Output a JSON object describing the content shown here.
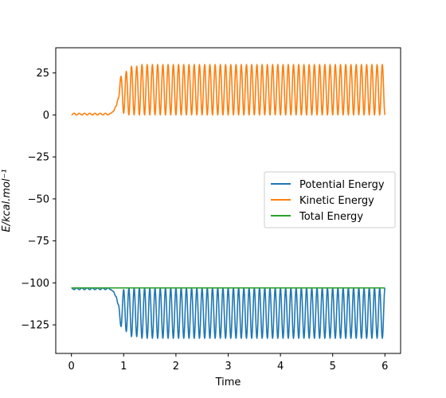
{
  "chart_data": {
    "type": "line",
    "xlabel": "Time",
    "ylabel": "E/kcal.mol⁻¹",
    "xlim": [
      -0.3,
      6.3
    ],
    "ylim": [
      -142,
      40
    ],
    "xticks": [
      0,
      1,
      2,
      3,
      4,
      5,
      6
    ],
    "yticks": [
      25,
      0,
      -25,
      -50,
      -75,
      -100,
      -125
    ],
    "ytick_labels": [
      "25",
      "0",
      "−25",
      "−50",
      "−75",
      "−100",
      "−125"
    ],
    "grid": false,
    "legend_placement": "center-right",
    "colors": {
      "potential": "#1f77b4",
      "kinetic": "#ff7f0e",
      "total": "#2ca02c"
    },
    "total_energy": -103.0,
    "series": [
      {
        "name": "Potential Energy",
        "baseline": -103.0,
        "x": [
          0.0,
          0.05,
          0.1,
          0.15,
          0.2,
          0.25,
          0.3,
          0.35,
          0.4,
          0.45,
          0.5,
          0.55,
          0.6,
          0.65,
          0.7,
          0.75,
          0.8,
          0.85,
          0.9,
          0.95,
          1.0,
          1.05,
          1.1,
          1.15,
          1.2,
          1.25,
          1.3,
          1.35,
          1.4,
          1.45,
          1.5,
          1.55,
          1.6,
          1.65,
          1.7,
          1.75,
          1.8,
          1.85,
          1.9,
          1.95,
          2.0,
          2.05,
          2.1,
          2.15,
          2.2,
          2.25,
          2.3,
          2.35,
          2.4,
          2.45,
          2.5,
          2.55,
          2.6,
          2.65,
          2.7,
          2.75,
          2.8,
          2.85,
          2.9,
          2.95,
          3.0,
          3.05,
          3.1,
          3.15,
          3.2,
          3.25,
          3.3,
          3.35,
          3.4,
          3.45,
          3.5,
          3.55,
          3.6,
          3.65,
          3.7,
          3.75,
          3.8,
          3.85,
          3.9,
          3.95,
          4.0,
          4.05,
          4.1,
          4.15,
          4.2,
          4.25,
          4.3,
          4.35,
          4.4,
          4.45,
          4.5,
          4.55,
          4.6,
          4.65,
          4.7,
          4.75,
          4.8,
          4.85,
          4.9,
          4.95,
          5.0,
          5.05,
          5.1,
          5.15,
          5.2,
          5.25,
          5.3,
          5.35,
          5.4,
          5.45,
          5.5,
          5.55,
          5.6,
          5.65,
          5.7,
          5.75,
          5.8,
          5.85,
          5.9,
          5.95,
          6.0
        ],
        "y": [
          -103,
          -104,
          -103,
          -104,
          -103,
          -104,
          -103,
          -104,
          -103,
          -104,
          -103,
          -104,
          -103,
          -104,
          -103,
          -104,
          -105,
          -108,
          -113,
          -126,
          -104,
          -129,
          -103,
          -132,
          -103,
          -132,
          -103,
          -133,
          -103,
          -133,
          -103,
          -133,
          -103,
          -133,
          -103,
          -133,
          -103,
          -133,
          -103,
          -133,
          -103,
          -133,
          -103,
          -133,
          -103,
          -133,
          -103,
          -133,
          -103,
          -133,
          -103,
          -133,
          -103,
          -133,
          -103,
          -133,
          -103,
          -133,
          -103,
          -133,
          -103,
          -133,
          -103,
          -133,
          -103,
          -133,
          -103,
          -133,
          -103,
          -133,
          -103,
          -133,
          -103,
          -133,
          -103,
          -133,
          -103,
          -133,
          -103,
          -133,
          -103,
          -133,
          -103,
          -133,
          -103,
          -133,
          -103,
          -133,
          -103,
          -133,
          -103,
          -133,
          -103,
          -133,
          -103,
          -133,
          -103,
          -133,
          -103,
          -133,
          -103,
          -133,
          -103,
          -133,
          -103,
          -133,
          -103,
          -133,
          -103,
          -133,
          -103,
          -133,
          -103,
          -133,
          -103,
          -133,
          -103,
          -133,
          -103,
          -133,
          -103
        ]
      },
      {
        "name": "Kinetic Energy",
        "baseline": 0.0,
        "x": [
          0.0,
          0.05,
          0.1,
          0.15,
          0.2,
          0.25,
          0.3,
          0.35,
          0.4,
          0.45,
          0.5,
          0.55,
          0.6,
          0.65,
          0.7,
          0.75,
          0.8,
          0.85,
          0.9,
          0.95,
          1.0,
          1.05,
          1.1,
          1.15,
          1.2,
          1.25,
          1.3,
          1.35,
          1.4,
          1.45,
          1.5,
          1.55,
          1.6,
          1.65,
          1.7,
          1.75,
          1.8,
          1.85,
          1.9,
          1.95,
          2.0,
          2.05,
          2.1,
          2.15,
          2.2,
          2.25,
          2.3,
          2.35,
          2.4,
          2.45,
          2.5,
          2.55,
          2.6,
          2.65,
          2.7,
          2.75,
          2.8,
          2.85,
          2.9,
          2.95,
          3.0,
          3.05,
          3.1,
          3.15,
          3.2,
          3.25,
          3.3,
          3.35,
          3.4,
          3.45,
          3.5,
          3.55,
          3.6,
          3.65,
          3.7,
          3.75,
          3.8,
          3.85,
          3.9,
          3.95,
          4.0,
          4.05,
          4.1,
          4.15,
          4.2,
          4.25,
          4.3,
          4.35,
          4.4,
          4.45,
          4.5,
          4.55,
          4.6,
          4.65,
          4.7,
          4.75,
          4.8,
          4.85,
          4.9,
          4.95,
          5.0,
          5.05,
          5.1,
          5.15,
          5.2,
          5.25,
          5.3,
          5.35,
          5.4,
          5.45,
          5.5,
          5.55,
          5.6,
          5.65,
          5.7,
          5.75,
          5.8,
          5.85,
          5.9,
          5.95,
          6.0
        ],
        "y": [
          0,
          1,
          0,
          1,
          0,
          1,
          0,
          1,
          0,
          1,
          0,
          1,
          0,
          1,
          0,
          1,
          2,
          5,
          10,
          23,
          1,
          26,
          0,
          29,
          0,
          29,
          0,
          30,
          0,
          30,
          0,
          30,
          0,
          30,
          0,
          30,
          0,
          30,
          0,
          30,
          0,
          30,
          0,
          30,
          0,
          30,
          0,
          30,
          0,
          30,
          0,
          30,
          0,
          30,
          0,
          30,
          0,
          30,
          0,
          30,
          0,
          30,
          0,
          30,
          0,
          30,
          0,
          30,
          0,
          30,
          0,
          30,
          0,
          30,
          0,
          30,
          0,
          30,
          0,
          30,
          0,
          30,
          0,
          30,
          0,
          30,
          0,
          30,
          0,
          30,
          0,
          30,
          0,
          30,
          0,
          30,
          0,
          30,
          0,
          30,
          0,
          30,
          0,
          30,
          0,
          30,
          0,
          30,
          0,
          30,
          0,
          30,
          0,
          30,
          0,
          30,
          0,
          30,
          0,
          30,
          0
        ]
      },
      {
        "name": "Total Energy",
        "x": [
          0,
          6
        ],
        "y": [
          -103,
          -103
        ]
      }
    ]
  }
}
